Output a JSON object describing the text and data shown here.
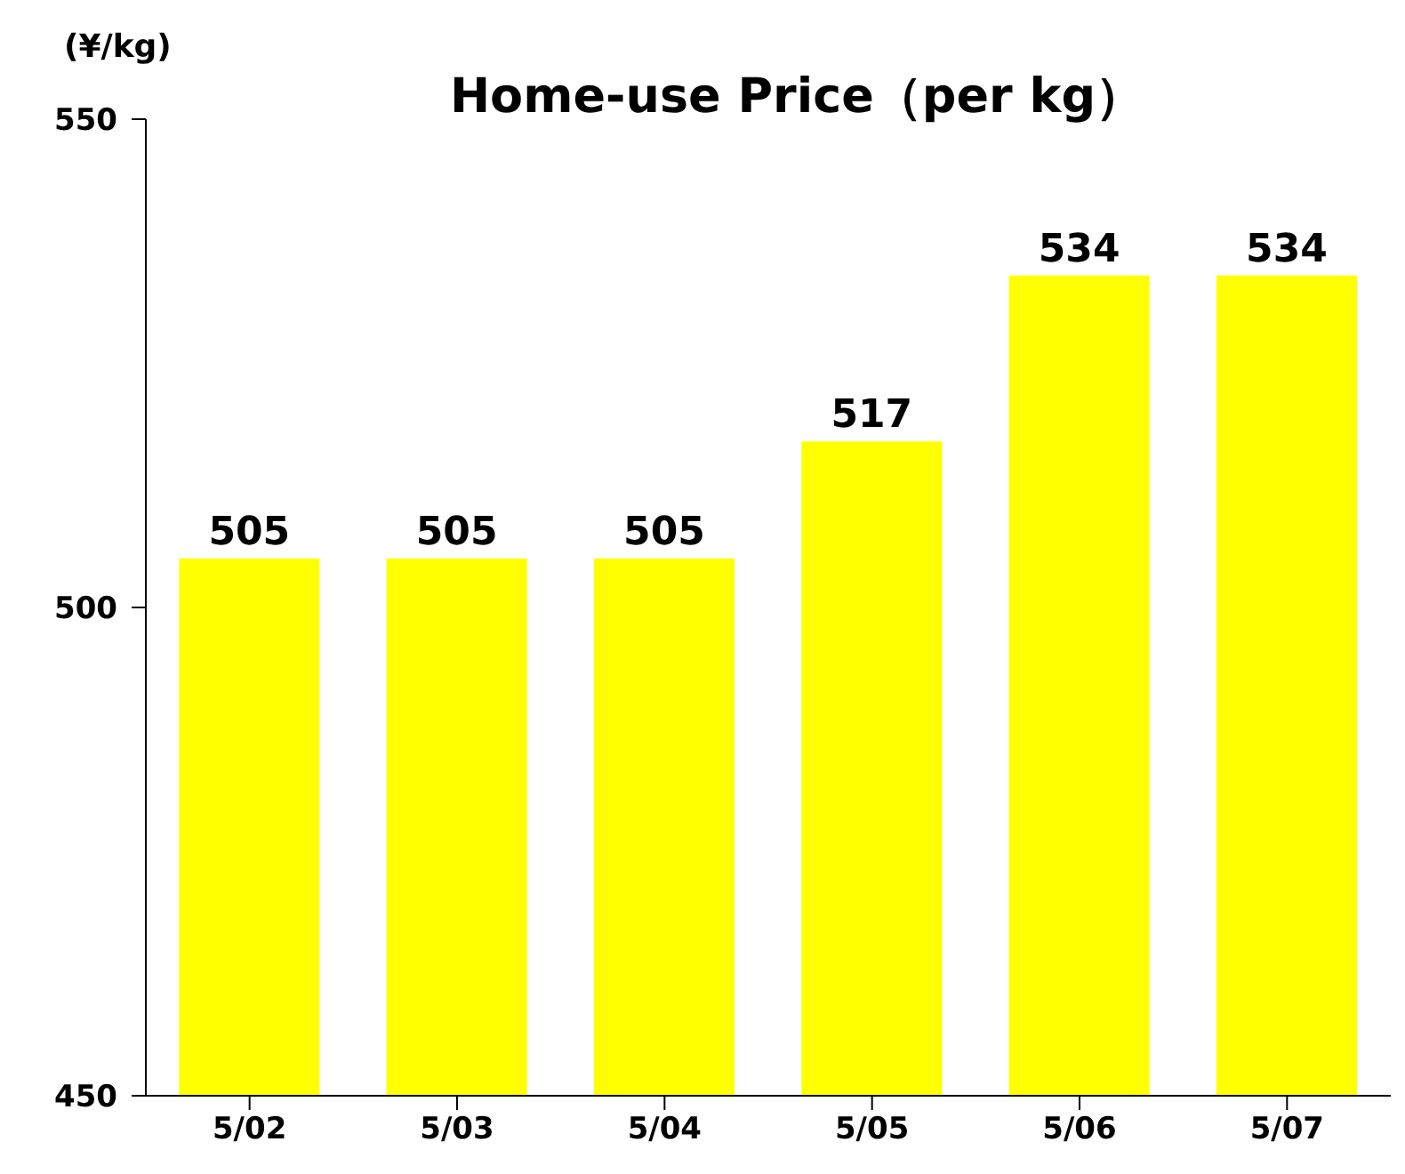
{
  "chart_data": {
    "type": "bar",
    "title": "Home-use Price（per kg）",
    "ylabel": "(¥/kg)",
    "categories": [
      "5/02",
      "5/03",
      "5/04",
      "5/05",
      "5/06",
      "5/07"
    ],
    "values": [
      505,
      505,
      505,
      517,
      534,
      534
    ],
    "color": "#ffff00",
    "ylim": [
      450,
      550
    ],
    "yticks": [
      450,
      500,
      550
    ],
    "grid": false,
    "data_labels": true
  }
}
